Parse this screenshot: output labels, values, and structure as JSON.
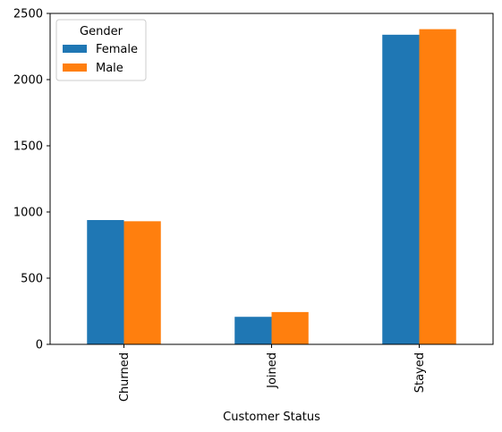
{
  "chart_data": {
    "type": "bar",
    "categories": [
      "Churned",
      "Joined",
      "Stayed"
    ],
    "series": [
      {
        "name": "Female",
        "values": [
          939,
          208,
          2339
        ],
        "color": "#1f77b4"
      },
      {
        "name": "Male",
        "values": [
          930,
          244,
          2381
        ],
        "color": "#ff7f0e"
      }
    ],
    "xlabel": "Customer Status",
    "ylabel": "",
    "title": "",
    "ylim": [
      0,
      2500
    ],
    "yticks": [
      0,
      500,
      1000,
      1500,
      2000,
      2500
    ],
    "legend": {
      "title": "Gender",
      "position": "top-left"
    },
    "grid": false
  }
}
